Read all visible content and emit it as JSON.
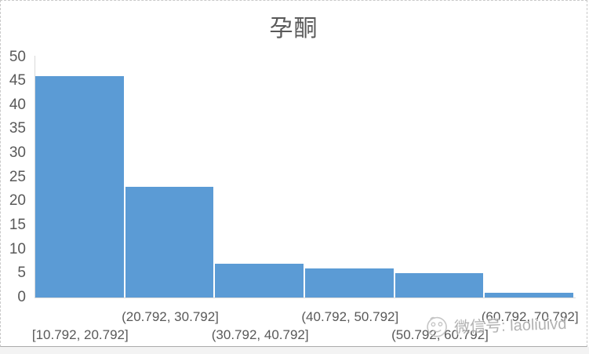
{
  "title": "孕酮",
  "watermark": {
    "label": "微信号: laoliuivd",
    "icon": "doodle-face-logo"
  },
  "chart_data": {
    "type": "bar",
    "subtype": "histogram",
    "title": "孕酮",
    "categories": [
      "[10.792, 20.792]",
      "(20.792, 30.792]",
      "(30.792, 40.792]",
      "(40.792, 50.792]",
      "(50.792, 60.792]",
      "(60.792, 70.792]"
    ],
    "values": [
      46,
      23,
      7,
      6,
      5,
      1
    ],
    "xlabel": "",
    "ylabel": "",
    "ylim": [
      0,
      50
    ],
    "ytick_step": 5,
    "yticks": [
      0,
      5,
      10,
      15,
      20,
      25,
      30,
      35,
      40,
      45,
      50
    ],
    "grid": false,
    "legend": null,
    "bar_color": "#5b9bd5",
    "axis_line_color": "#d9d9d9",
    "label_color": "#595959",
    "title_color": "#595959"
  }
}
